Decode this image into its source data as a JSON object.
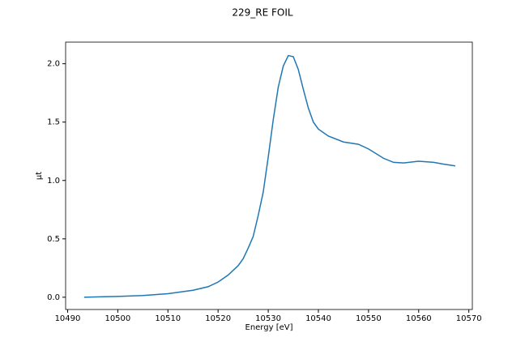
{
  "chart_data": {
    "type": "line",
    "title": "229_RE FOIL",
    "xlabel": "Energy [eV]",
    "ylabel": "μt",
    "x": [
      10493.3,
      10500,
      10505,
      10510,
      10515,
      10518,
      10520,
      10522,
      10524,
      10525,
      10526,
      10527,
      10528,
      10529,
      10530,
      10531,
      10532,
      10533,
      10534,
      10535,
      10536,
      10537,
      10538,
      10539,
      10540,
      10542,
      10545,
      10548,
      10550,
      10553,
      10555,
      10557,
      10560,
      10563,
      10565,
      10567.3
    ],
    "series": [
      {
        "color": "#1f77b4",
        "values": [
          0.0,
          0.007,
          0.015,
          0.03,
          0.06,
          0.09,
          0.13,
          0.19,
          0.27,
          0.33,
          0.42,
          0.52,
          0.7,
          0.9,
          1.2,
          1.52,
          1.8,
          1.98,
          2.07,
          2.06,
          1.95,
          1.78,
          1.62,
          1.5,
          1.44,
          1.38,
          1.33,
          1.31,
          1.27,
          1.19,
          1.155,
          1.15,
          1.165,
          1.155,
          1.14,
          1.125
        ]
      }
    ],
    "xlim": [
      10489.6,
      10570.7
    ],
    "ylim": [
      -0.105,
      2.185
    ],
    "xticks": [
      10490,
      10500,
      10510,
      10520,
      10530,
      10540,
      10550,
      10560,
      10570
    ],
    "yticks": [
      {
        "value": 0,
        "label": "0.0"
      },
      {
        "value": 0.5,
        "label": "0.5"
      },
      {
        "value": 1,
        "label": "1.0"
      },
      {
        "value": 1.5,
        "label": "1.5"
      },
      {
        "value": 2,
        "label": "2.0"
      }
    ]
  }
}
